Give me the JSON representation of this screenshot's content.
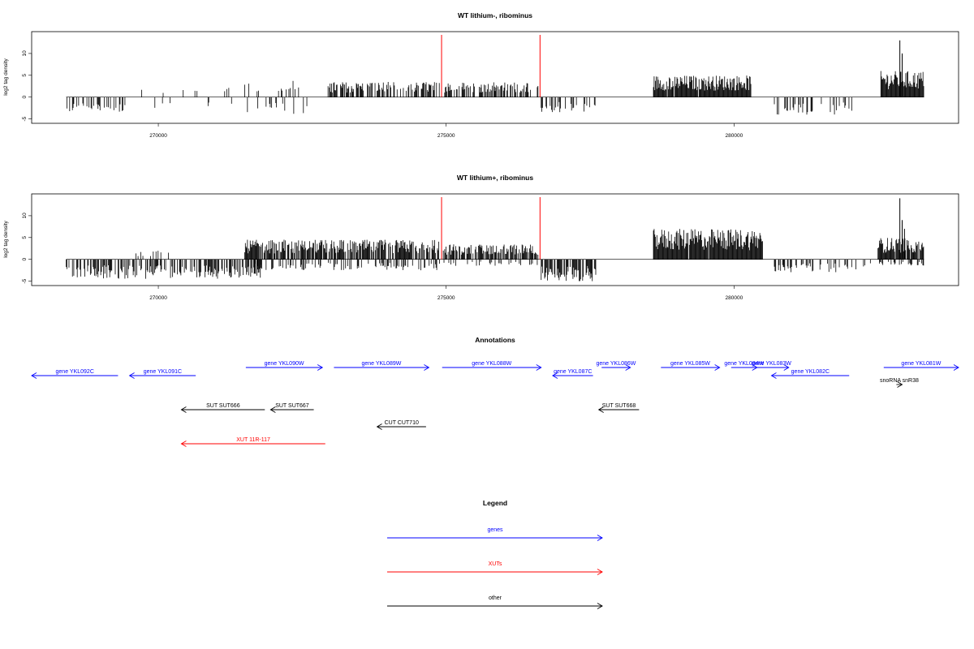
{
  "colors": {
    "gene": "#0000ff",
    "xut": "#ff0000",
    "other": "#000000",
    "marker": "#ff0000",
    "baseline": "#000000"
  },
  "panels": [
    {
      "title": "WT lithium-, ribominus",
      "ylabel": "log2 tag density"
    },
    {
      "title": "WT lithium+, ribominus",
      "ylabel": "log2 tag density"
    }
  ],
  "chart_data": [
    {
      "type": "bar",
      "title": "WT lithium-, ribominus",
      "ylabel": "log2 tag density",
      "xlim": [
        267800,
        283900
      ],
      "ylim": [
        -6,
        15
      ],
      "x_ticks": [
        "270000",
        "275000",
        "280000"
      ],
      "y_ticks": [
        "-5",
        "0",
        "5",
        "10"
      ],
      "marker_lines_x": [
        274920,
        276630
      ],
      "coverage_segments": [
        {
          "x": [
            268400,
            269500
          ],
          "mode": "neg",
          "max": 3.5,
          "density": 0.35
        },
        {
          "x": [
            269700,
            271300
          ],
          "mode": "sparse",
          "max": 2.5,
          "density": 0.12
        },
        {
          "x": [
            271500,
            272700
          ],
          "mode": "mixed",
          "max": 4,
          "density": 0.35
        },
        {
          "x": [
            272900,
            274900
          ],
          "mode": "pos",
          "max": 3.5,
          "density": 0.55
        },
        {
          "x": [
            274950,
            276600
          ],
          "mode": "pos",
          "max": 3.5,
          "density": 0.5
        },
        {
          "x": [
            276650,
            277600
          ],
          "mode": "neg",
          "max": 3.5,
          "density": 0.4
        },
        {
          "x": [
            278600,
            280300
          ],
          "mode": "pos",
          "max": 5,
          "density": 0.95
        },
        {
          "x": [
            280700,
            282100
          ],
          "mode": "neg",
          "max": 4,
          "density": 0.3
        },
        {
          "x": [
            282550,
            283300
          ],
          "mode": "pos",
          "max": 6,
          "density": 0.95
        }
      ],
      "peaks": [
        {
          "x": 282880,
          "y": 13
        },
        {
          "x": 282920,
          "y": 10
        }
      ]
    },
    {
      "type": "bar",
      "title": "WT lithium+, ribominus",
      "ylabel": "log2 tag density",
      "xlim": [
        267800,
        283900
      ],
      "ylim": [
        -6,
        15
      ],
      "x_ticks": [
        "270000",
        "275000",
        "280000"
      ],
      "y_ticks": [
        "-5",
        "0",
        "5",
        "10"
      ],
      "marker_lines_x": [
        274920,
        276630
      ],
      "coverage_segments": [
        {
          "x": [
            268400,
            271800
          ],
          "mode": "neg",
          "max": 4.5,
          "density": 0.55
        },
        {
          "x": [
            269600,
            270200
          ],
          "mode": "pos",
          "max": 2,
          "density": 0.2
        },
        {
          "x": [
            271500,
            274900
          ],
          "mode": "pos",
          "max": 4.5,
          "density": 0.8
        },
        {
          "x": [
            271500,
            274900
          ],
          "mode": "neg",
          "max": 2.5,
          "density": 0.3
        },
        {
          "x": [
            274950,
            276600
          ],
          "mode": "pos",
          "max": 3.5,
          "density": 0.75
        },
        {
          "x": [
            274950,
            276600
          ],
          "mode": "neg",
          "max": 1.5,
          "density": 0.2
        },
        {
          "x": [
            276650,
            277600
          ],
          "mode": "neg",
          "max": 5,
          "density": 0.8
        },
        {
          "x": [
            278600,
            280500
          ],
          "mode": "pos",
          "max": 7,
          "density": 0.98
        },
        {
          "x": [
            280700,
            282400
          ],
          "mode": "neg",
          "max": 3,
          "density": 0.25
        },
        {
          "x": [
            282500,
            283300
          ],
          "mode": "pos",
          "max": 5,
          "density": 0.95
        },
        {
          "x": [
            282500,
            283300
          ],
          "mode": "neg",
          "max": 1.5,
          "density": 0.3
        }
      ],
      "peaks": [
        {
          "x": 282880,
          "y": 14
        },
        {
          "x": 282920,
          "y": 9
        },
        {
          "x": 282960,
          "y": 7
        }
      ]
    }
  ],
  "annotations": {
    "title": "Annotations",
    "features": [
      {
        "label": "gene YKL092C",
        "type": "gene",
        "strand": "-",
        "x": [
          266000,
          269300
        ],
        "row": 1
      },
      {
        "label": "gene YKL091C",
        "type": "gene",
        "strand": "-",
        "x": [
          269500,
          270650
        ],
        "row": 1
      },
      {
        "label": "gene YKL090W",
        "type": "gene",
        "strand": "+",
        "x": [
          271520,
          272850
        ],
        "row": 0
      },
      {
        "label": "gene YKL089W",
        "type": "gene",
        "strand": "+",
        "x": [
          273050,
          274700
        ],
        "row": 0
      },
      {
        "label": "gene YKL088W",
        "type": "gene",
        "strand": "+",
        "x": [
          274930,
          276650
        ],
        "row": 0
      },
      {
        "label": "gene YKL087C",
        "type": "gene",
        "strand": "-",
        "x": [
          276850,
          277550
        ],
        "row": 1
      },
      {
        "label": "gene YKL086W",
        "type": "gene",
        "strand": "+",
        "x": [
          277700,
          278200
        ],
        "row": 0
      },
      {
        "label": "gene YKL085W",
        "type": "gene",
        "strand": "+",
        "x": [
          278730,
          279750
        ],
        "row": 0
      },
      {
        "label": "gene YKL084W",
        "type": "gene",
        "strand": "+",
        "x": [
          279950,
          280400
        ],
        "row": 0
      },
      {
        "label": "gene YKL083W",
        "type": "gene",
        "strand": "+",
        "x": [
          280350,
          280950
        ],
        "row": 0
      },
      {
        "label": "gene YKL082C",
        "type": "gene",
        "strand": "-",
        "x": [
          280650,
          282000
        ],
        "row": 1
      },
      {
        "label": "gene YKL081W",
        "type": "gene",
        "strand": "+",
        "x": [
          282600,
          284500
        ],
        "row": 0
      },
      {
        "label": "snoRNA snR38",
        "type": "other",
        "strand": "+",
        "x": [
          282820,
          282920
        ],
        "row": 2
      },
      {
        "label": "SUT SUT666",
        "type": "other",
        "strand": "-",
        "x": [
          270400,
          271850
        ],
        "row": 3
      },
      {
        "label": "SUT SUT667",
        "type": "other",
        "strand": "-",
        "x": [
          271950,
          272700
        ],
        "row": 3
      },
      {
        "label": "SUT SUT668",
        "type": "other",
        "strand": "-",
        "x": [
          277650,
          278350
        ],
        "row": 3
      },
      {
        "label": "CUT CUT710",
        "type": "other",
        "strand": "-",
        "x": [
          273800,
          274650
        ],
        "row": 4
      },
      {
        "label": "XUT 11R-117",
        "type": "xut",
        "strand": "-",
        "x": [
          270400,
          272900
        ],
        "row": 5
      }
    ]
  },
  "legend": {
    "title": "Legend",
    "items": [
      {
        "label": "genes",
        "type": "gene"
      },
      {
        "label": "XUTs",
        "type": "xut"
      },
      {
        "label": "other",
        "type": "other"
      }
    ]
  }
}
